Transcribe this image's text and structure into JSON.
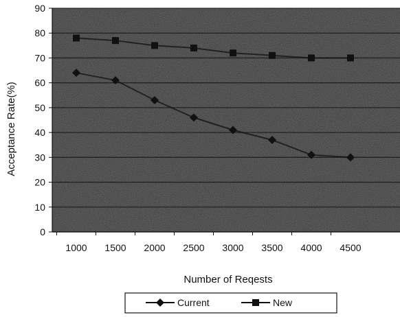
{
  "chart_data": {
    "type": "line",
    "xlabel": "Number of Reqests",
    "ylabel": "Acceptance Rate(%)",
    "ylim": [
      0,
      90
    ],
    "y_ticks": [
      "0",
      "10",
      "20",
      "30",
      "40",
      "50",
      "60",
      "70",
      "80",
      "90"
    ],
    "categories": [
      "1000",
      "1500",
      "2000",
      "2500",
      "3000",
      "3500",
      "4000",
      "4500"
    ],
    "grid": true,
    "legend_position": "bottom",
    "background": "#6e6e6e",
    "series": [
      {
        "name": "Current",
        "marker": "diamond",
        "color": "#111111",
        "values": [
          64,
          61,
          53,
          46,
          41,
          37,
          31,
          30
        ]
      },
      {
        "name": "New",
        "marker": "square",
        "color": "#111111",
        "values": [
          78,
          77,
          75,
          74,
          72,
          71,
          70,
          70
        ]
      }
    ]
  }
}
